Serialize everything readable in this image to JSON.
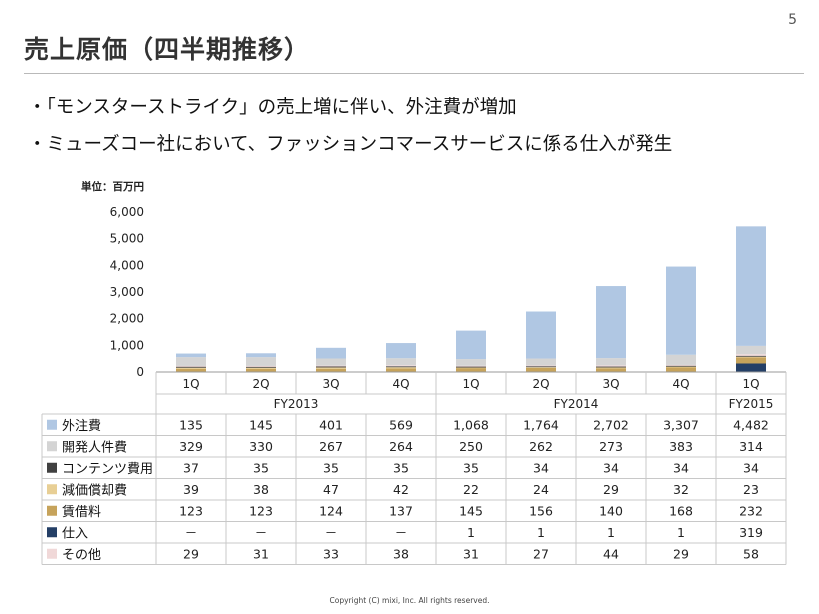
{
  "page_number": "5",
  "title": "売上原価（四半期推移）",
  "bullets": [
    "「モンスターストライク」の売上増に伴い、外注費が増加",
    "ミューズコー社において、ファッションコマースサービスに係る仕入が発生"
  ],
  "unit_label": "単位：百万円",
  "footer": "Copyright (C) mixi, Inc. All rights reserved.",
  "chart_data": {
    "type": "bar",
    "stacked": true,
    "ylim": [
      0,
      6000
    ],
    "yticks": [
      0,
      1000,
      2000,
      3000,
      4000,
      5000,
      6000
    ],
    "ytick_labels": [
      "0",
      "1,000",
      "2,000",
      "3,000",
      "4,000",
      "5,000",
      "6,000"
    ],
    "categories": [
      "1Q",
      "2Q",
      "3Q",
      "4Q",
      "1Q",
      "2Q",
      "3Q",
      "4Q",
      "1Q"
    ],
    "fiscal_years": [
      {
        "label": "FY2013",
        "count": 4
      },
      {
        "label": "FY2014",
        "count": 4
      },
      {
        "label": "FY2015",
        "count": 1
      }
    ],
    "series": [
      {
        "name": "外注費",
        "color": "#b0c7e3",
        "values": [
          135,
          145,
          401,
          569,
          1068,
          1764,
          2702,
          3307,
          4482
        ],
        "labels": [
          "135",
          "145",
          "401",
          "569",
          "1,068",
          "1,764",
          "2,702",
          "3,307",
          "4,482"
        ]
      },
      {
        "name": "開発人件費",
        "color": "#d4d4d4",
        "values": [
          329,
          330,
          267,
          264,
          250,
          262,
          273,
          383,
          314
        ],
        "labels": [
          "329",
          "330",
          "267",
          "264",
          "250",
          "262",
          "273",
          "383",
          "314"
        ]
      },
      {
        "name": "コンテンツ費用",
        "color": "#404040",
        "values": [
          37,
          35,
          35,
          35,
          35,
          34,
          34,
          34,
          34
        ],
        "labels": [
          "37",
          "35",
          "35",
          "35",
          "35",
          "34",
          "34",
          "34",
          "34"
        ]
      },
      {
        "name": "減価償却費",
        "color": "#e8cf95",
        "values": [
          39,
          38,
          47,
          42,
          22,
          24,
          29,
          32,
          23
        ],
        "labels": [
          "39",
          "38",
          "47",
          "42",
          "22",
          "24",
          "29",
          "32",
          "23"
        ]
      },
      {
        "name": "賃借料",
        "color": "#c6a35b",
        "values": [
          123,
          123,
          124,
          137,
          145,
          156,
          140,
          168,
          232
        ],
        "labels": [
          "123",
          "123",
          "124",
          "137",
          "145",
          "156",
          "140",
          "168",
          "232"
        ]
      },
      {
        "name": "仕入",
        "color": "#243f66",
        "values": [
          0,
          0,
          0,
          0,
          1,
          1,
          1,
          1,
          319
        ],
        "labels": [
          "－",
          "－",
          "－",
          "－",
          "1",
          "1",
          "1",
          "1",
          "319"
        ]
      },
      {
        "name": "その他",
        "color": "#f0d8d8",
        "values": [
          29,
          31,
          33,
          38,
          31,
          27,
          44,
          29,
          58
        ],
        "labels": [
          "29",
          "31",
          "33",
          "38",
          "31",
          "27",
          "44",
          "29",
          "58"
        ]
      }
    ],
    "stack_order_bottom_to_top": [
      "仕入",
      "賃借料",
      "減価償却費",
      "コンテンツ費用",
      "その他",
      "開発人件費",
      "外注費"
    ]
  }
}
